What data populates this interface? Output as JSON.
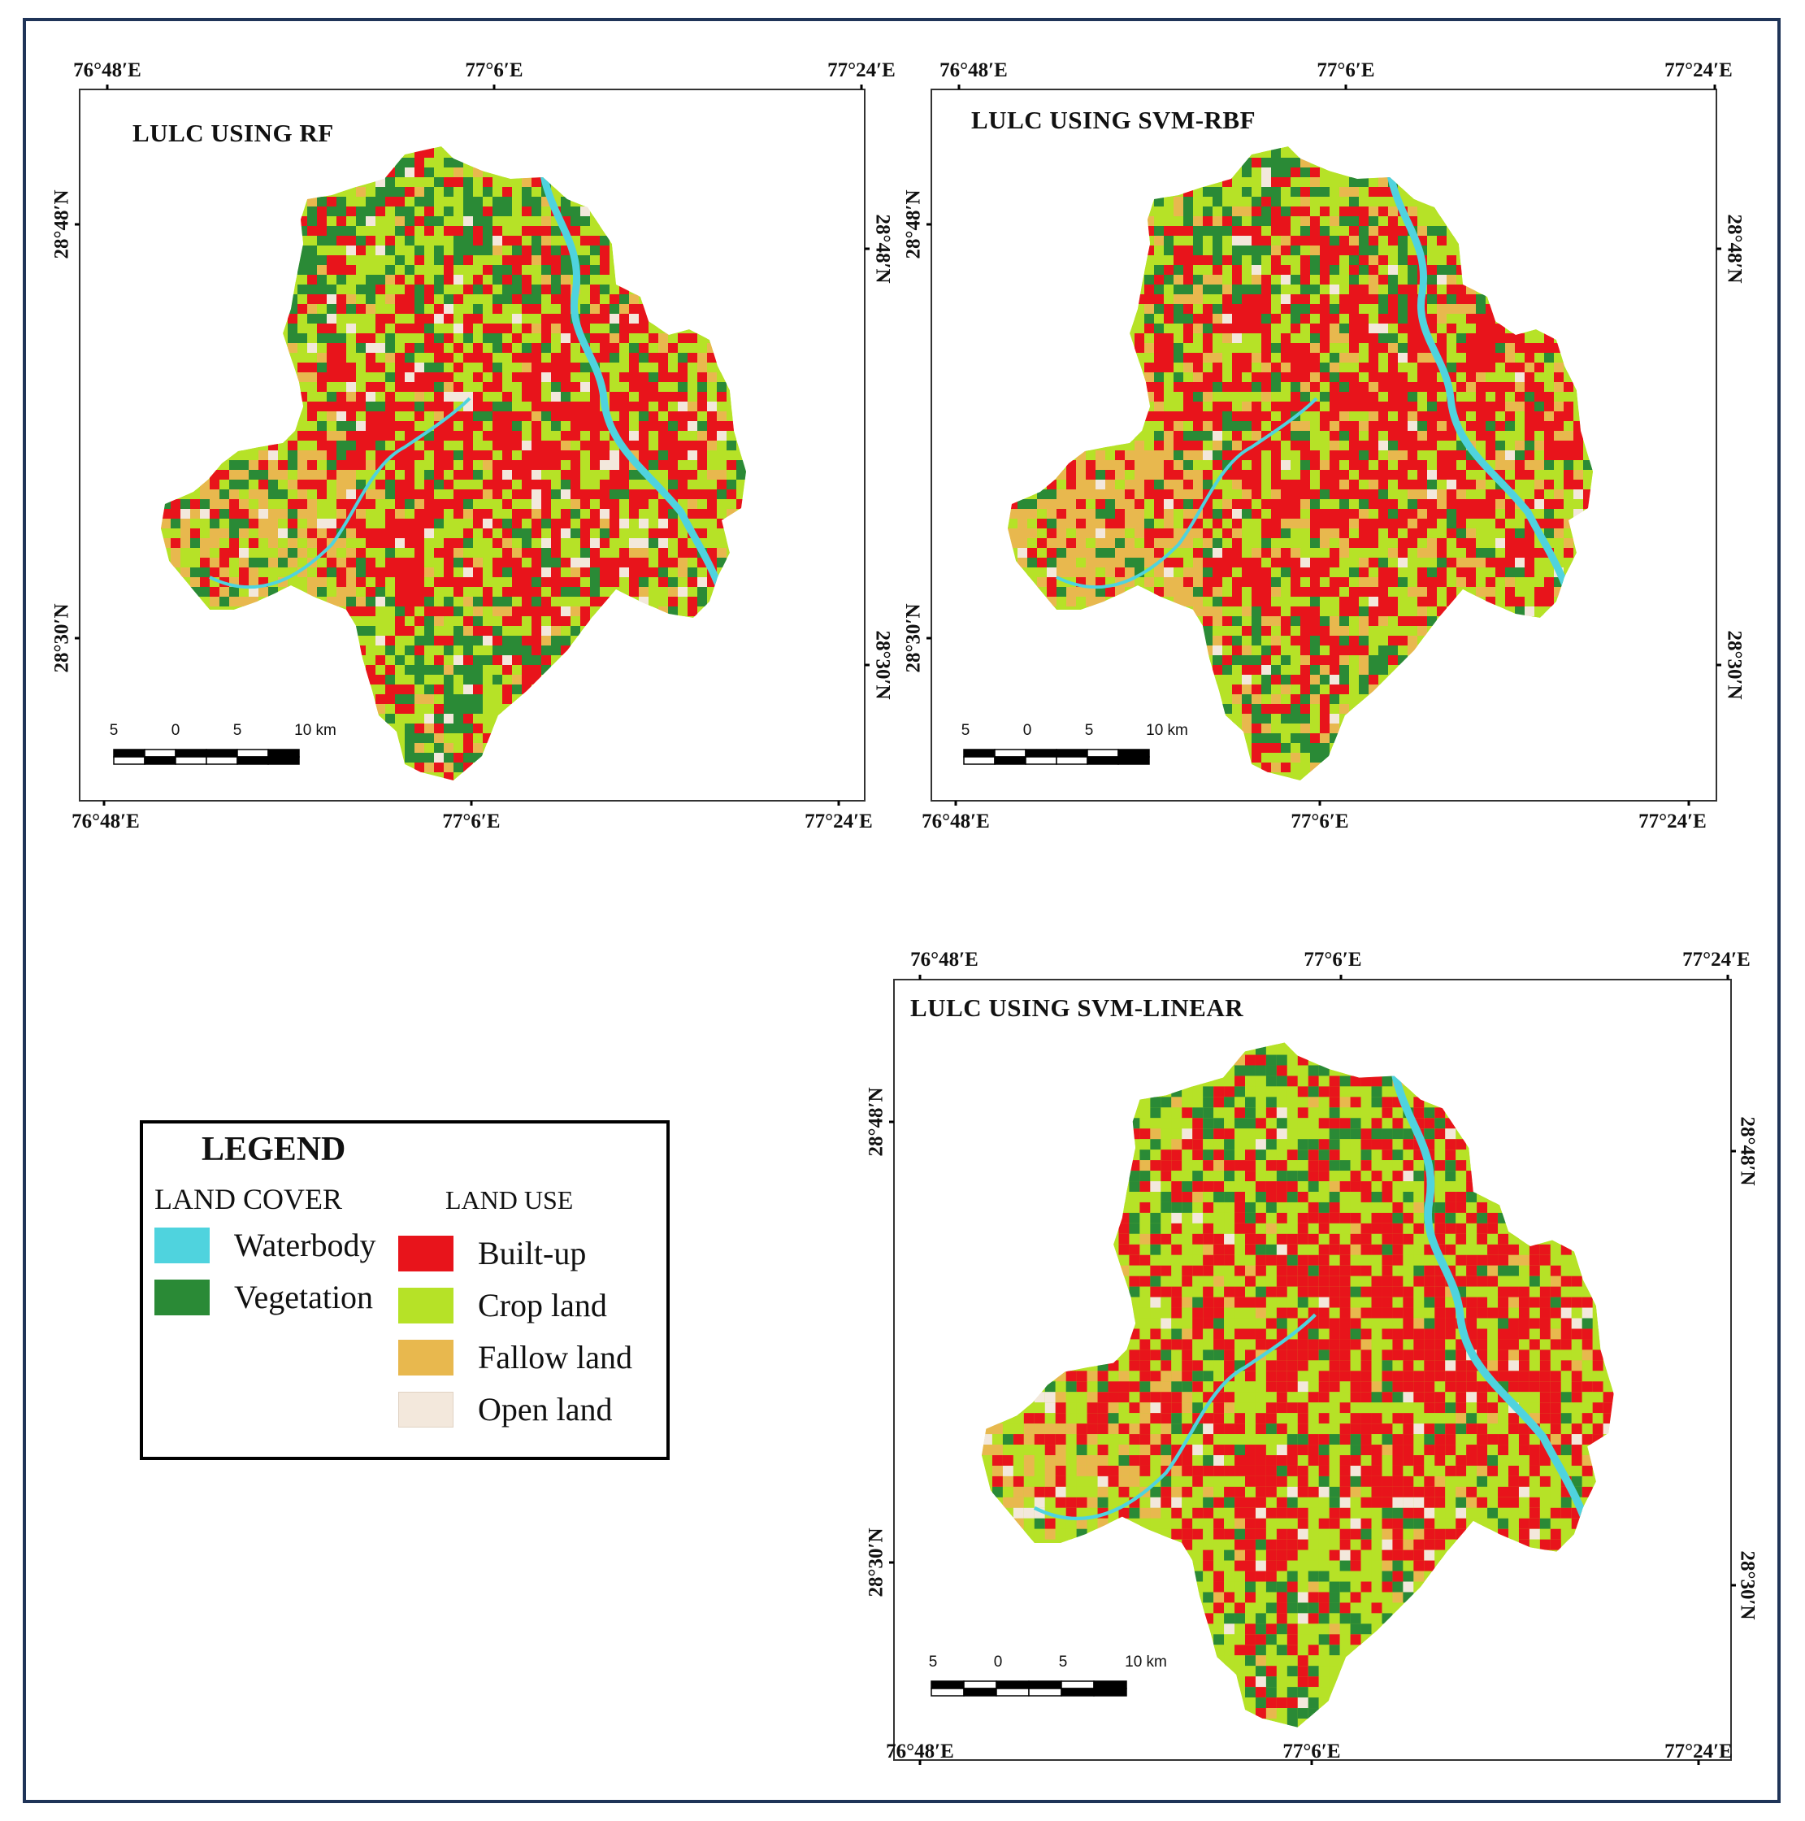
{
  "legend": {
    "title": "LEGEND",
    "land_cover_heading": "LAND COVER",
    "land_use_heading": "LAND USE",
    "land_cover_items": [
      {
        "label": "Waterbody",
        "color": "#4fd3de"
      },
      {
        "label": "Vegetation",
        "color": "#2a8a36"
      }
    ],
    "land_use_items": [
      {
        "label": "Built-up",
        "color": "#e8141b"
      },
      {
        "label": "Crop land",
        "color": "#b6e227"
      },
      {
        "label": "Fallow land",
        "color": "#e8b84e"
      },
      {
        "label": "Open land",
        "color": "#f3e8dc"
      }
    ]
  },
  "maps": [
    {
      "id": "rf",
      "title": "LULC USING RF",
      "top_ticks": [
        "76°48′E",
        "77°6′E",
        "77°24′E"
      ],
      "bottom_ticks": [
        "76°48′E",
        "77°6′E",
        "77°24′E"
      ],
      "left_ticks": [
        "28°48′N",
        "28°30′N"
      ],
      "right_ticks": [
        "28°48′N",
        "28°30′N"
      ],
      "scale_labels": [
        "5",
        "0",
        "5",
        "10 km"
      ],
      "mix": {
        "builtup": 0.34,
        "crop": 0.3,
        "vegetation": 0.2,
        "fallow": 0.12,
        "open": 0.04
      }
    },
    {
      "id": "svm-rbf",
      "title": "LULC USING SVM-RBF",
      "top_ticks": [
        "76°48′E",
        "77°6′E",
        "77°24′E"
      ],
      "bottom_ticks": [
        "76°48′E",
        "77°6′E",
        "77°24′E"
      ],
      "left_ticks": [
        "28°48′N",
        "28°30′N"
      ],
      "right_ticks": [
        "28°48′N",
        "28°30′N"
      ],
      "scale_labels": [
        "5",
        "0",
        "5",
        "10 km"
      ],
      "mix": {
        "builtup": 0.36,
        "crop": 0.28,
        "vegetation": 0.14,
        "fallow": 0.2,
        "open": 0.02
      }
    },
    {
      "id": "svm-linear",
      "title": "LULC USING SVM-LINEAR",
      "top_ticks": [
        "76°48′E",
        "77°6′E",
        "77°24′E"
      ],
      "bottom_ticks": [
        "76°48′E",
        "77°6′E",
        "77°24′E"
      ],
      "left_ticks": [
        "28°48′N",
        "28°30′N"
      ],
      "right_ticks": [
        "28°48′N",
        "28°30′N"
      ],
      "scale_labels": [
        "5",
        "0",
        "5",
        "10 km"
      ],
      "mix": {
        "builtup": 0.42,
        "crop": 0.34,
        "vegetation": 0.14,
        "fallow": 0.07,
        "open": 0.03
      }
    }
  ]
}
